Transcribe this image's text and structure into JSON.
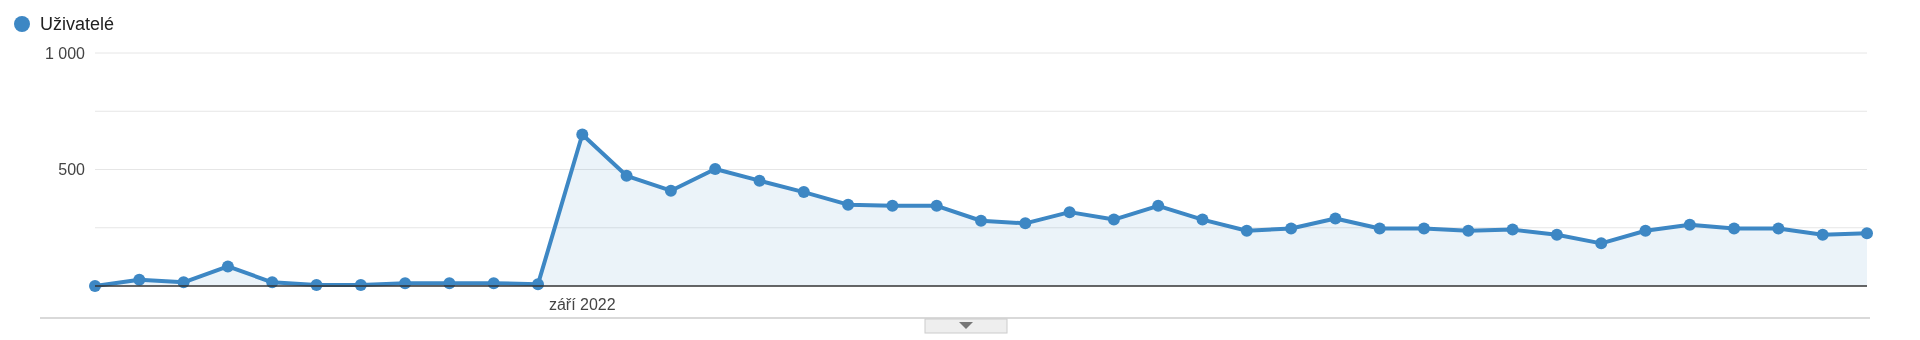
{
  "chart_data": {
    "type": "area",
    "categories": [
      null,
      null,
      null,
      null,
      null,
      null,
      null,
      null,
      null,
      null,
      null,
      "září 2022",
      null,
      null,
      null,
      null,
      null,
      null,
      null,
      null,
      null,
      null,
      null,
      null,
      null,
      null,
      null,
      null,
      null,
      null,
      null,
      null,
      null,
      null,
      null,
      null,
      null,
      null,
      null,
      null,
      null
    ],
    "series": [
      {
        "name": "Uživatelé",
        "color": "#3d87c4",
        "values": [
          0,
          27,
          16,
          84,
          16,
          4,
          4,
          12,
          12,
          12,
          8,
          650,
          473,
          409,
          502,
          452,
          403,
          349,
          344,
          344,
          280,
          269,
          317,
          285,
          344,
          285,
          237,
          247,
          290,
          247,
          247,
          237,
          242,
          220,
          183,
          237,
          263,
          247,
          247,
          220,
          226
        ]
      }
    ],
    "ylim": [
      0,
      1000
    ],
    "yticks": [
      {
        "value": 250,
        "label": null
      },
      {
        "value": 500,
        "label": "500"
      },
      {
        "value": 750,
        "label": null
      },
      {
        "value": 1000,
        "label": "1 000"
      }
    ],
    "grid": "y",
    "legend": "top left",
    "marker": "circle"
  }
}
